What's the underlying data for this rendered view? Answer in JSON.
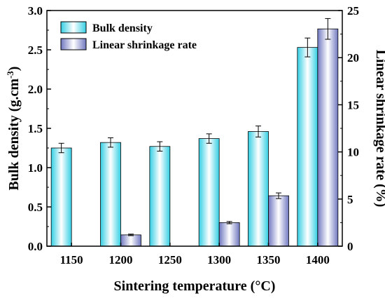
{
  "chart_data": {
    "type": "bar",
    "categories": [
      "1150",
      "1200",
      "1250",
      "1300",
      "1350",
      "1400"
    ],
    "xlabel": "Sintering temperature (°C)",
    "ylabel": "Bulk density (g.cm",
    "ylabel_superscript": "-3",
    "ylabel_suffix": ")",
    "y2label": "Linear shrinkage rate (%)",
    "ylim": [
      0,
      3.0
    ],
    "y2lim": [
      0,
      25
    ],
    "yticks": [
      "0.0",
      "0.5",
      "1.0",
      "1.5",
      "2.0",
      "2.5",
      "3.0"
    ],
    "y2ticks": [
      "0",
      "5",
      "10",
      "15",
      "20",
      "25"
    ],
    "legend_position": "top-left",
    "grid": false,
    "series": [
      {
        "name": "Bulk density",
        "axis": "left",
        "color": "#4fd8ea",
        "values": [
          1.25,
          1.32,
          1.27,
          1.37,
          1.46,
          2.53
        ],
        "errors": [
          0.06,
          0.06,
          0.06,
          0.06,
          0.07,
          0.12
        ]
      },
      {
        "name": "Linear shrinkage rate",
        "axis": "right",
        "color": "#8890cc",
        "values": [
          null,
          1.2,
          null,
          2.5,
          5.35,
          23.05
        ],
        "errors": [
          null,
          0.08,
          null,
          0.12,
          0.3,
          1.1
        ]
      }
    ]
  }
}
